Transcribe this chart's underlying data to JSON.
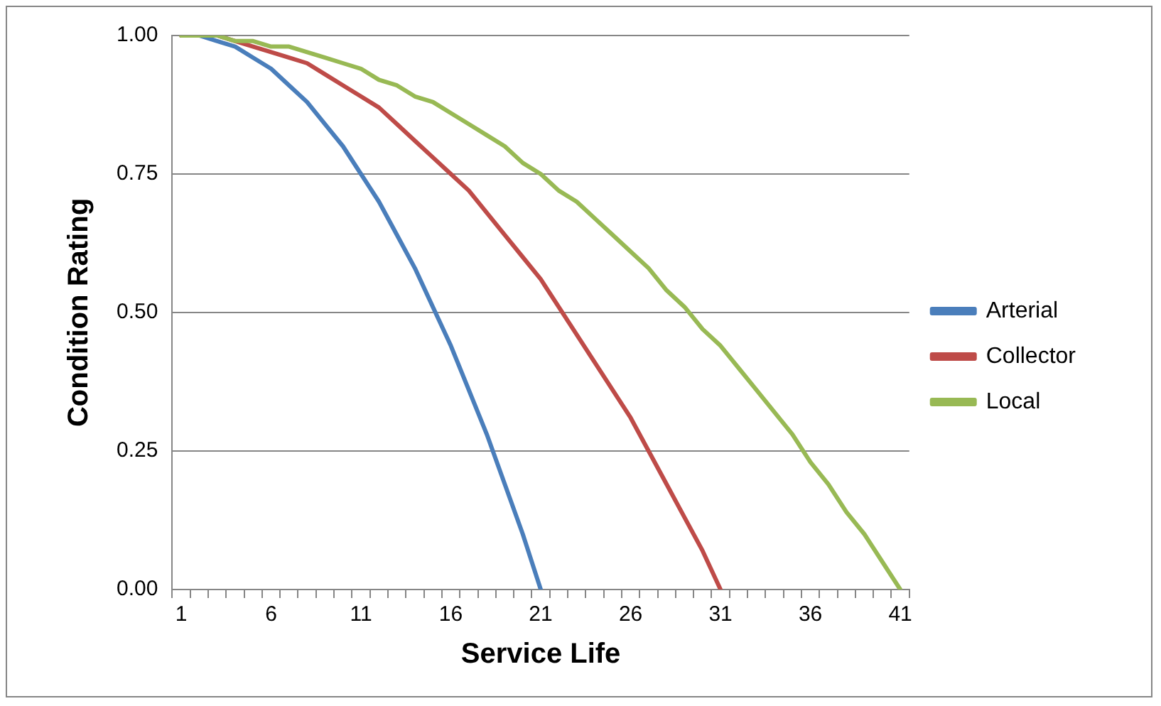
{
  "chart_data": {
    "type": "line",
    "xlabel": "Service Life",
    "ylabel": "Condition Rating",
    "x": [
      1,
      2,
      3,
      4,
      5,
      6,
      7,
      8,
      9,
      10,
      11,
      12,
      13,
      14,
      15,
      16,
      17,
      18,
      19,
      20,
      21,
      22,
      23,
      24,
      25,
      26,
      27,
      28,
      29,
      30,
      31,
      32,
      33,
      34,
      35,
      36,
      37,
      38,
      39,
      40,
      41
    ],
    "xlim": [
      0.5,
      41.5
    ],
    "xticks": [
      {
        "value": 0.5,
        "label": null
      },
      1,
      {
        "value": 1.5,
        "label": null
      },
      {
        "value": 2.5,
        "label": null
      },
      {
        "value": 3.5,
        "label": null
      },
      {
        "value": 4.5,
        "label": null
      },
      {
        "value": 5.5,
        "label": null
      },
      6,
      {
        "value": 6.5,
        "label": null
      },
      {
        "value": 7.5,
        "label": null
      },
      {
        "value": 8.5,
        "label": null
      },
      {
        "value": 9.5,
        "label": null
      },
      {
        "value": 10.5,
        "label": null
      },
      11,
      {
        "value": 11.5,
        "label": null
      },
      {
        "value": 12.5,
        "label": null
      },
      {
        "value": 13.5,
        "label": null
      },
      {
        "value": 14.5,
        "label": null
      },
      {
        "value": 15.5,
        "label": null
      },
      16,
      {
        "value": 16.5,
        "label": null
      },
      {
        "value": 17.5,
        "label": null
      },
      {
        "value": 18.5,
        "label": null
      },
      {
        "value": 19.5,
        "label": null
      },
      {
        "value": 20.5,
        "label": null
      },
      21,
      {
        "value": 21.5,
        "label": null
      },
      {
        "value": 22.5,
        "label": null
      },
      {
        "value": 23.5,
        "label": null
      },
      {
        "value": 24.5,
        "label": null
      },
      {
        "value": 25.5,
        "label": null
      },
      26,
      {
        "value": 26.5,
        "label": null
      },
      {
        "value": 27.5,
        "label": null
      },
      {
        "value": 28.5,
        "label": null
      },
      {
        "value": 29.5,
        "label": null
      },
      {
        "value": 30.5,
        "label": null
      },
      31,
      {
        "value": 31.5,
        "label": null
      },
      {
        "value": 32.5,
        "label": null
      },
      {
        "value": 33.5,
        "label": null
      },
      {
        "value": 34.5,
        "label": null
      },
      {
        "value": 35.5,
        "label": null
      },
      36,
      {
        "value": 36.5,
        "label": null
      },
      {
        "value": 37.5,
        "label": null
      },
      {
        "value": 38.5,
        "label": null
      },
      {
        "value": 39.5,
        "label": null
      },
      {
        "value": 40.5,
        "label": null
      },
      41,
      {
        "value": 41.5,
        "label": null
      }
    ],
    "series": [
      {
        "name": "Arterial",
        "color": "#4a7ebb",
        "values": [
          1.0,
          1.0,
          0.99,
          0.98,
          0.96,
          0.94,
          0.91,
          0.88,
          0.84,
          0.8,
          0.75,
          0.7,
          0.64,
          0.58,
          0.51,
          0.44,
          0.36,
          0.28,
          0.19,
          0.1,
          0.0,
          null,
          null,
          null,
          null,
          null,
          null,
          null,
          null,
          null,
          null,
          null,
          null,
          null,
          null,
          null,
          null,
          null,
          null,
          null,
          null
        ]
      },
      {
        "name": "Collector",
        "color": "#be4b48",
        "values": [
          1.0,
          1.0,
          1.0,
          0.99,
          0.98,
          0.97,
          0.96,
          0.95,
          0.93,
          0.91,
          0.89,
          0.87,
          0.84,
          0.81,
          0.78,
          0.75,
          0.72,
          0.68,
          0.64,
          0.6,
          0.56,
          0.51,
          0.46,
          0.41,
          0.36,
          0.31,
          0.25,
          0.19,
          0.13,
          0.07,
          0.0,
          null,
          null,
          null,
          null,
          null,
          null,
          null,
          null,
          null,
          null
        ]
      },
      {
        "name": "Local",
        "color": "#98b954",
        "values": [
          1.0,
          1.0,
          1.0,
          0.99,
          0.99,
          0.98,
          0.98,
          0.97,
          0.96,
          0.95,
          0.94,
          0.92,
          0.91,
          0.89,
          0.88,
          0.86,
          0.84,
          0.82,
          0.8,
          0.77,
          0.75,
          0.72,
          0.7,
          0.67,
          0.64,
          0.61,
          0.58,
          0.54,
          0.51,
          0.47,
          0.44,
          0.4,
          0.36,
          0.32,
          0.28,
          0.23,
          0.19,
          0.14,
          0.1,
          0.05,
          0.0
        ]
      }
    ],
    "ylim": [
      0,
      1
    ],
    "yticks": [
      {
        "value": 0,
        "label": "0.00"
      },
      {
        "value": 0.25,
        "label": "0.25"
      },
      {
        "value": 0.5,
        "label": "0.50"
      },
      {
        "value": 0.75,
        "label": "0.75"
      },
      {
        "value": 1,
        "label": "1.00"
      }
    ],
    "grid": "y",
    "legend": "right",
    "marker": "none",
    "line_style": "solid"
  }
}
